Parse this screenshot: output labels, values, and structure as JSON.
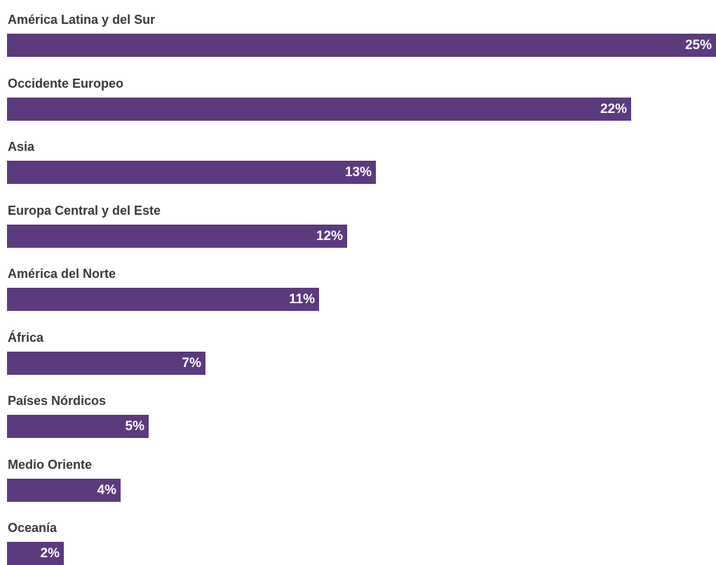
{
  "chart_data": {
    "type": "bar",
    "orientation": "horizontal",
    "value_suffix": "%",
    "bar_color": "#5b3a7e",
    "categories": [
      "América Latina y del Sur",
      "Occidente Europeo",
      "Asia",
      "Europa Central y del Este",
      "América del Norte",
      "África",
      "Países Nórdicos",
      "Medio Oriente",
      "Oceanía"
    ],
    "values": [
      25,
      22,
      13,
      12,
      11,
      7,
      5,
      4,
      2
    ],
    "value_labels": [
      "25%",
      "22%",
      "13%",
      "12%",
      "11%",
      "7%",
      "5%",
      "4%",
      "2%"
    ],
    "xlim": [
      0,
      25
    ],
    "grid": false,
    "legend": "none"
  }
}
